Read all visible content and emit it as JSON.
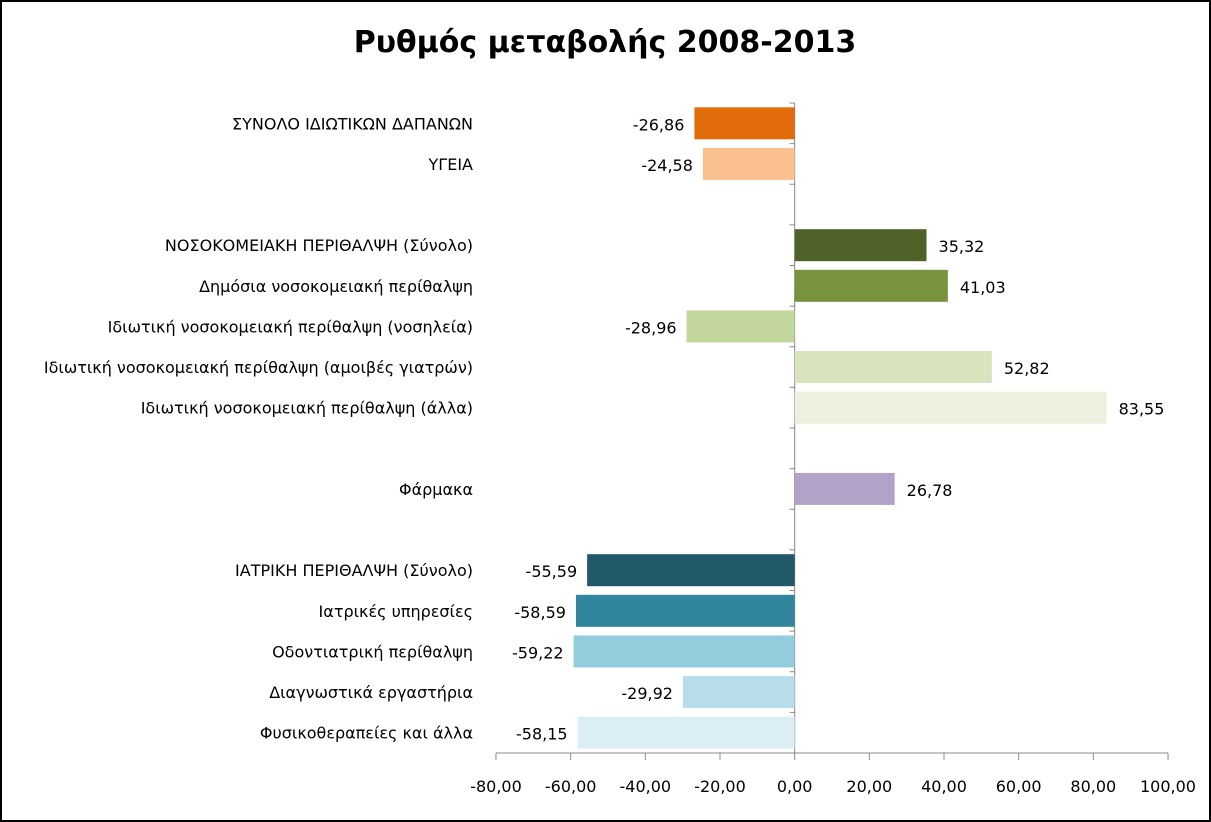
{
  "chart_data": {
    "type": "bar",
    "orientation": "horizontal",
    "title": "Ρυθμός μεταβολής 2008-2013",
    "xlabel": "",
    "ylabel": "",
    "xlim": [
      -80,
      100
    ],
    "x_ticks": [
      -80,
      -60,
      -40,
      -20,
      0,
      20,
      40,
      60,
      80,
      100
    ],
    "x_tick_labels": [
      "-80,00",
      "-60,00",
      "-40,00",
      "-20,00",
      "0,00",
      "20,00",
      "40,00",
      "60,00",
      "80,00",
      "100,00"
    ],
    "grid": false,
    "legend": "none",
    "rows": [
      {
        "category": "ΣΥΝΟΛΟ ΙΔΙΩΤΙΚΩΝ ΔΑΠΑΝΩΝ",
        "value": -26.86,
        "label": "-26,86",
        "color": "#E36C0A"
      },
      {
        "category": "ΥΓΕΙΑ",
        "value": -24.58,
        "label": "-24,58",
        "color": "#FAC090"
      },
      {
        "category": "",
        "value": null,
        "label": "",
        "color": ""
      },
      {
        "category": "ΝΟΣΟΚΟΜΕΙΑΚΗ ΠΕΡΙΘΑΛΨΗ (Σύνολο)",
        "value": 35.32,
        "label": "35,32",
        "color": "#4F6228"
      },
      {
        "category": "Δημόσια νοσοκομειακή περίθαλψη",
        "value": 41.03,
        "label": "41,03",
        "color": "#77933C"
      },
      {
        "category": "Ιδιωτική νοσοκομειακή περίθαλψη (νοσηλεία)",
        "value": -28.96,
        "label": "-28,96",
        "color": "#C3D69B"
      },
      {
        "category": "Ιδιωτική νοσοκομειακή περίθαλψη (αμοιβές γιατρών)",
        "value": 52.82,
        "label": "52,82",
        "color": "#D7E4BD"
      },
      {
        "category": "Ιδιωτική νοσοκομειακή περίθαλψη (άλλα)",
        "value": 83.55,
        "label": "83,55",
        "color": "#EBF1DE"
      },
      {
        "category": "",
        "value": null,
        "label": "",
        "color": ""
      },
      {
        "category": "Φάρμακα",
        "value": 26.78,
        "label": "26,78",
        "color": "#B3A2C7"
      },
      {
        "category": "",
        "value": null,
        "label": "",
        "color": ""
      },
      {
        "category": "ΙΑΤΡΙΚΗ ΠΕΡΙΘΑΛΨΗ (Σύνολο)",
        "value": -55.59,
        "label": "-55,59",
        "color": "#215968"
      },
      {
        "category": "Ιατρικές υπηρεσίες",
        "value": -58.59,
        "label": "-58,59",
        "color": "#31859C"
      },
      {
        "category": "Οδοντιατρική περίθαλψη",
        "value": -59.22,
        "label": "-59,22",
        "color": "#93CDDD"
      },
      {
        "category": "Διαγνωστικά εργαστήρια",
        "value": -29.92,
        "label": "-29,92",
        "color": "#B7DEE8"
      },
      {
        "category": "Φυσικοθεραπείες και άλλα",
        "value": -58.15,
        "label": "-58,15",
        "color": "#DBEEF4"
      }
    ]
  }
}
